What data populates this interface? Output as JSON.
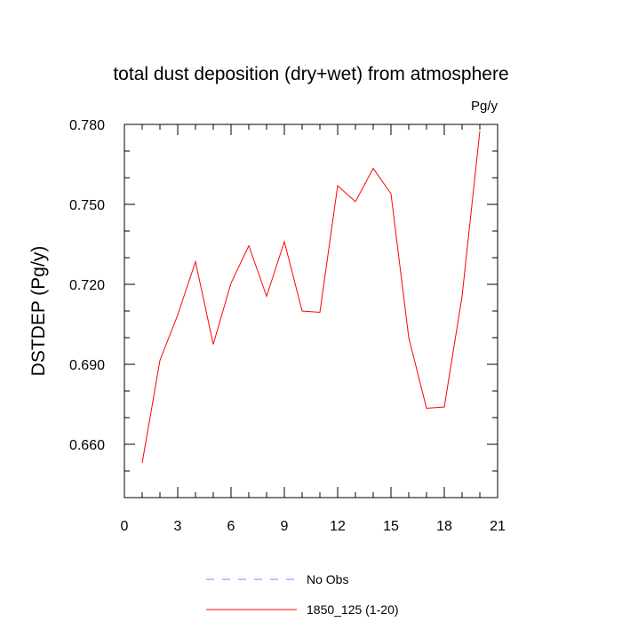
{
  "chart_data": {
    "type": "line",
    "title": "total dust deposition (dry+wet) from atmosphere",
    "units": "Pg/y",
    "xlabel": "",
    "ylabel": "DSTDEP  (Pg/y)",
    "xlim": [
      0,
      21
    ],
    "ylim": [
      0.64,
      0.78
    ],
    "x_ticks": [
      0,
      3,
      6,
      9,
      12,
      15,
      18,
      21
    ],
    "x_tick_labels": [
      "0",
      "3",
      "6",
      "9",
      "12",
      "15",
      "18",
      "21"
    ],
    "y_ticks": [
      0.66,
      0.69,
      0.72,
      0.75,
      0.78
    ],
    "y_tick_labels": [
      "0.660",
      "0.690",
      "0.720",
      "0.750",
      "0.780"
    ],
    "grid": false,
    "legend_position": "bottom",
    "series": [
      {
        "name": "No Obs",
        "color": "#8080ff",
        "style": "dashed",
        "x": [],
        "values": []
      },
      {
        "name": "1850_125 (1-20)",
        "color": "#ff0000",
        "style": "solid",
        "x": [
          1,
          2,
          3,
          4,
          5,
          6,
          7,
          8,
          9,
          10,
          11,
          12,
          13,
          14,
          15,
          16,
          17,
          18,
          19,
          20
        ],
        "values": [
          0.653,
          0.6915,
          0.7085,
          0.7285,
          0.6975,
          0.7205,
          0.7345,
          0.7155,
          0.736,
          0.71,
          0.7095,
          0.757,
          0.751,
          0.7635,
          0.754,
          0.7,
          0.6735,
          0.674,
          0.7155,
          0.7775
        ]
      }
    ]
  }
}
